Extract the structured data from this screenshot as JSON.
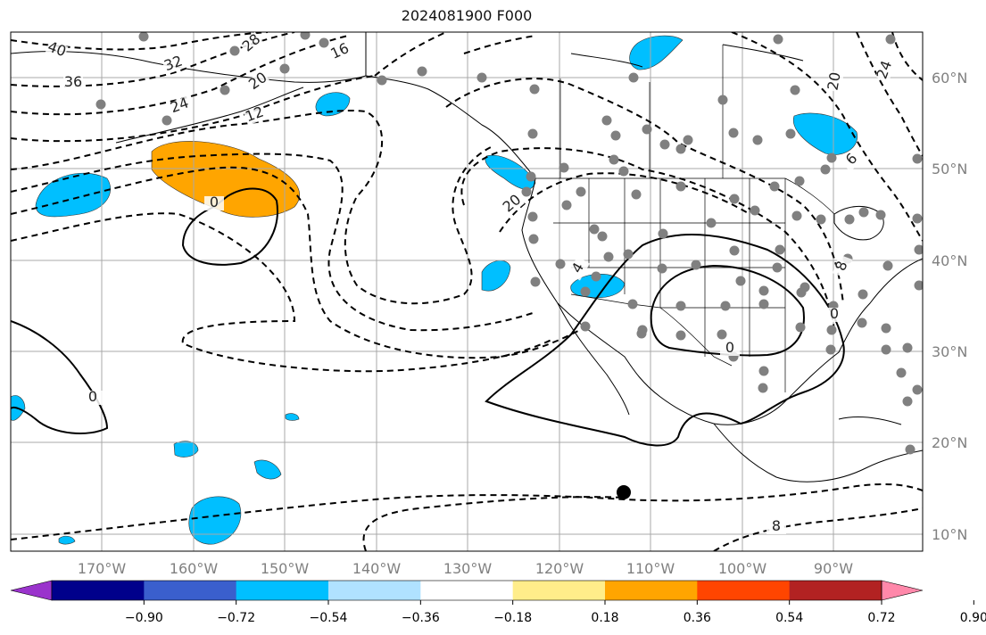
{
  "title": "2024081900 F000",
  "lon_axis": {
    "labels": [
      "170°W",
      "160°W",
      "150°W",
      "140°W",
      "130°W",
      "120°W",
      "110°W",
      "100°W",
      "90°W"
    ]
  },
  "lat_axis": {
    "labels": [
      "60°N",
      "50°N",
      "40°N",
      "30°N",
      "20°N",
      "10°N"
    ]
  },
  "contour_labels": [
    "40",
    "36",
    "32",
    "28",
    "24",
    "20",
    "16",
    "12",
    "0",
    "0",
    "0",
    "20",
    "20",
    "4",
    "8",
    "6",
    "24",
    "8",
    "0"
  ],
  "colorbar": {
    "ticks": [
      "−0.90",
      "−0.72",
      "−0.54",
      "−0.36",
      "−0.18",
      "0.18",
      "0.36",
      "0.54",
      "0.72",
      "0.90"
    ],
    "colors": [
      "#9a33cc",
      "#00008b",
      "#3a5fcd",
      "#00bfff",
      "#b0e2ff",
      "#ffffff",
      "#ffed8a",
      "#ffa500",
      "#ff4500",
      "#b22222",
      "#ff88aa"
    ]
  },
  "colors": {
    "positive_fill": "#ffa500",
    "negative_fill": "#00bfff",
    "station_dot": "#808080",
    "grid": "#a9a9a9"
  }
}
